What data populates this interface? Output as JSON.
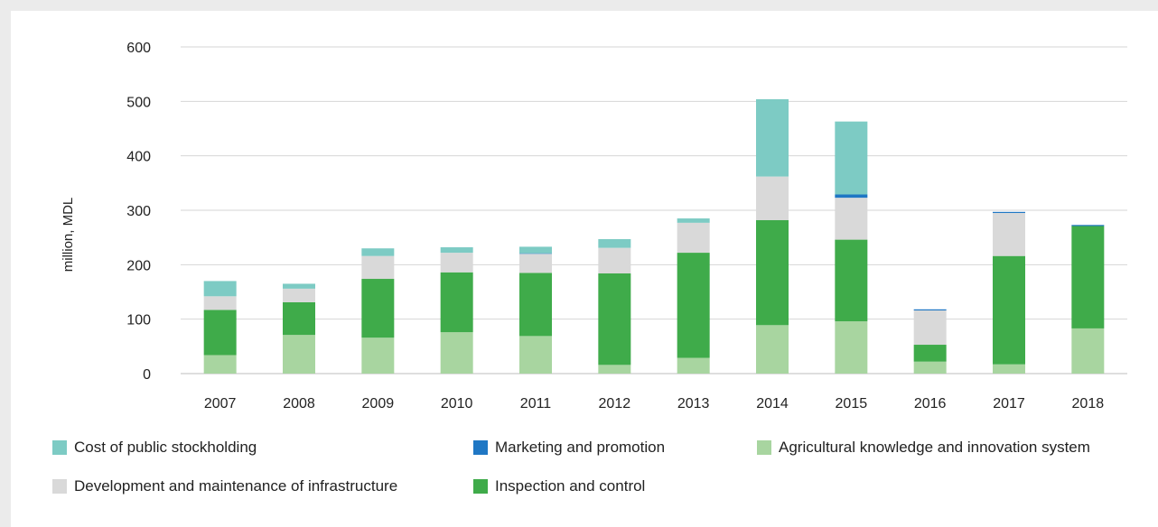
{
  "chart_data": {
    "type": "bar",
    "stacked": true,
    "title": "",
    "xlabel": "",
    "ylabel": "million, MDL",
    "ylim": [
      0,
      600
    ],
    "yticks": [
      0,
      100,
      200,
      300,
      400,
      500,
      600
    ],
    "grid": true,
    "legend_position": "bottom",
    "categories": [
      "2007",
      "2008",
      "2009",
      "2010",
      "2011",
      "2012",
      "2013",
      "2014",
      "2015",
      "2016",
      "2017",
      "2018"
    ],
    "series": [
      {
        "name": "Agricultural knowledge and innovation system",
        "color": "#a8d5a0",
        "values": [
          34,
          71,
          66,
          76,
          69,
          16,
          29,
          89,
          96,
          22,
          17,
          83
        ]
      },
      {
        "name": "Inspection and control",
        "color": "#3fab4a",
        "values": [
          83,
          60,
          108,
          110,
          116,
          168,
          193,
          193,
          150,
          31,
          199,
          188
        ]
      },
      {
        "name": "Development and maintenance of infrastructure",
        "color": "#d9d9d9",
        "values": [
          25,
          25,
          42,
          36,
          35,
          47,
          55,
          80,
          77,
          63,
          79,
          0
        ]
      },
      {
        "name": "Marketing and promotion",
        "color": "#1f77c4",
        "values": [
          0,
          0,
          0,
          0,
          1,
          0,
          0,
          0,
          6,
          2,
          2,
          2
        ]
      },
      {
        "name": "Cost of public stockholding",
        "color": "#7dcbc4",
        "values": [
          28,
          9,
          14,
          10,
          12,
          16,
          8,
          142,
          134,
          0,
          0,
          0
        ]
      }
    ],
    "legend": [
      "Cost of public stockholding",
      "Marketing and promotion",
      "Agricultural knowledge and innovation system",
      "Development and maintenance of infrastructure",
      "Inspection and control"
    ]
  }
}
